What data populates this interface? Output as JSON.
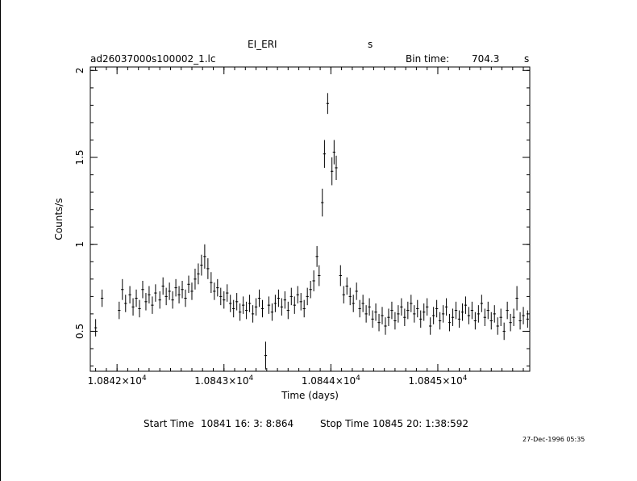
{
  "header": {
    "object_name": "EI_ERI",
    "object_unit": "s",
    "file_name": "ad26037000s100002_1.lc",
    "bin_time_label": "Bin time:",
    "bin_time_value": "704.3",
    "bin_time_unit": "s"
  },
  "footer": {
    "start_label": "Start Time",
    "start_value": "10841 16: 3: 8:864",
    "stop_label": "Stop Time",
    "stop_value": "10845 20: 1:38:592",
    "timestamp": "27-Dec-1996 05:35"
  },
  "colors": {
    "axes": "#000000",
    "data": "#000000",
    "background": "#ffffff"
  },
  "chart_data": {
    "type": "scatter",
    "xlabel": "Time (days)",
    "ylabel": "Counts/s",
    "xlim": [
      10841.75,
      10845.86
    ],
    "ylim": [
      0.27,
      2.02
    ],
    "x_ticks": [
      {
        "value": 10842,
        "mantissa": "1.0842",
        "exponent": "4"
      },
      {
        "value": 10843,
        "mantissa": "1.0843",
        "exponent": "4"
      },
      {
        "value": 10844,
        "mantissa": "1.0844",
        "exponent": "4"
      },
      {
        "value": 10845,
        "mantissa": "1.0845",
        "exponent": "4"
      }
    ],
    "y_ticks": [
      {
        "value": 0.5,
        "label": "0.5"
      },
      {
        "value": 1,
        "label": "1"
      },
      {
        "value": 1.5,
        "label": "1.5"
      },
      {
        "value": 2,
        "label": "2"
      }
    ],
    "x_minor_step": 0.1,
    "y_minor_step": 0.1,
    "error_bars": true,
    "points": [
      [
        10841.8,
        0.52,
        0.05
      ],
      [
        10841.86,
        0.69,
        0.05
      ],
      [
        10842.02,
        0.62,
        0.05
      ],
      [
        10842.05,
        0.74,
        0.06
      ],
      [
        10842.08,
        0.66,
        0.05
      ],
      [
        10842.12,
        0.71,
        0.05
      ],
      [
        10842.15,
        0.64,
        0.05
      ],
      [
        10842.18,
        0.69,
        0.05
      ],
      [
        10842.21,
        0.63,
        0.05
      ],
      [
        10842.24,
        0.74,
        0.05
      ],
      [
        10842.27,
        0.67,
        0.05
      ],
      [
        10842.3,
        0.71,
        0.05
      ],
      [
        10842.33,
        0.65,
        0.05
      ],
      [
        10842.36,
        0.72,
        0.05
      ],
      [
        10842.4,
        0.68,
        0.05
      ],
      [
        10842.43,
        0.76,
        0.05
      ],
      [
        10842.46,
        0.7,
        0.05
      ],
      [
        10842.49,
        0.73,
        0.05
      ],
      [
        10842.52,
        0.68,
        0.05
      ],
      [
        10842.55,
        0.75,
        0.05
      ],
      [
        10842.58,
        0.71,
        0.05
      ],
      [
        10842.61,
        0.74,
        0.05
      ],
      [
        10842.64,
        0.69,
        0.05
      ],
      [
        10842.67,
        0.77,
        0.05
      ],
      [
        10842.7,
        0.73,
        0.05
      ],
      [
        10842.73,
        0.8,
        0.06
      ],
      [
        10842.76,
        0.83,
        0.06
      ],
      [
        10842.79,
        0.88,
        0.06
      ],
      [
        10842.82,
        0.93,
        0.07
      ],
      [
        10842.85,
        0.86,
        0.06
      ],
      [
        10842.88,
        0.78,
        0.06
      ],
      [
        10842.91,
        0.73,
        0.05
      ],
      [
        10842.94,
        0.75,
        0.05
      ],
      [
        10842.97,
        0.7,
        0.05
      ],
      [
        10843.0,
        0.68,
        0.05
      ],
      [
        10843.03,
        0.72,
        0.05
      ],
      [
        10843.06,
        0.66,
        0.05
      ],
      [
        10843.09,
        0.63,
        0.05
      ],
      [
        10843.12,
        0.67,
        0.05
      ],
      [
        10843.15,
        0.61,
        0.05
      ],
      [
        10843.18,
        0.65,
        0.05
      ],
      [
        10843.21,
        0.62,
        0.05
      ],
      [
        10843.24,
        0.66,
        0.05
      ],
      [
        10843.27,
        0.6,
        0.05
      ],
      [
        10843.3,
        0.64,
        0.05
      ],
      [
        10843.33,
        0.69,
        0.05
      ],
      [
        10843.36,
        0.63,
        0.05
      ],
      [
        10843.39,
        0.36,
        0.08
      ],
      [
        10843.42,
        0.65,
        0.05
      ],
      [
        10843.45,
        0.61,
        0.05
      ],
      [
        10843.48,
        0.66,
        0.05
      ],
      [
        10843.51,
        0.69,
        0.05
      ],
      [
        10843.54,
        0.64,
        0.05
      ],
      [
        10843.57,
        0.68,
        0.05
      ],
      [
        10843.6,
        0.62,
        0.05
      ],
      [
        10843.63,
        0.7,
        0.05
      ],
      [
        10843.66,
        0.65,
        0.05
      ],
      [
        10843.69,
        0.71,
        0.05
      ],
      [
        10843.72,
        0.67,
        0.05
      ],
      [
        10843.75,
        0.63,
        0.05
      ],
      [
        10843.78,
        0.7,
        0.05
      ],
      [
        10843.81,
        0.74,
        0.05
      ],
      [
        10843.84,
        0.79,
        0.06
      ],
      [
        10843.87,
        0.93,
        0.06
      ],
      [
        10843.89,
        0.82,
        0.06
      ],
      [
        10843.92,
        1.24,
        0.08
      ],
      [
        10843.94,
        1.52,
        0.08
      ],
      [
        10843.97,
        1.81,
        0.06
      ],
      [
        10844.01,
        1.42,
        0.08
      ],
      [
        10844.03,
        1.53,
        0.07
      ],
      [
        10844.05,
        1.44,
        0.07
      ],
      [
        10844.09,
        0.82,
        0.06
      ],
      [
        10844.12,
        0.71,
        0.05
      ],
      [
        10844.15,
        0.76,
        0.05
      ],
      [
        10844.18,
        0.7,
        0.05
      ],
      [
        10844.21,
        0.66,
        0.05
      ],
      [
        10844.24,
        0.73,
        0.05
      ],
      [
        10844.27,
        0.63,
        0.05
      ],
      [
        10844.3,
        0.66,
        0.05
      ],
      [
        10844.33,
        0.6,
        0.05
      ],
      [
        10844.36,
        0.64,
        0.05
      ],
      [
        10844.39,
        0.57,
        0.05
      ],
      [
        10844.42,
        0.61,
        0.05
      ],
      [
        10844.45,
        0.55,
        0.05
      ],
      [
        10844.48,
        0.59,
        0.05
      ],
      [
        10844.51,
        0.53,
        0.05
      ],
      [
        10844.54,
        0.58,
        0.05
      ],
      [
        10844.57,
        0.62,
        0.05
      ],
      [
        10844.6,
        0.56,
        0.05
      ],
      [
        10844.63,
        0.6,
        0.05
      ],
      [
        10844.66,
        0.64,
        0.05
      ],
      [
        10844.69,
        0.58,
        0.05
      ],
      [
        10844.72,
        0.62,
        0.05
      ],
      [
        10844.75,
        0.66,
        0.05
      ],
      [
        10844.78,
        0.6,
        0.05
      ],
      [
        10844.81,
        0.63,
        0.05
      ],
      [
        10844.84,
        0.57,
        0.05
      ],
      [
        10844.87,
        0.61,
        0.05
      ],
      [
        10844.9,
        0.64,
        0.05
      ],
      [
        10844.93,
        0.53,
        0.05
      ],
      [
        10844.96,
        0.59,
        0.05
      ],
      [
        10844.99,
        0.63,
        0.05
      ],
      [
        10845.02,
        0.56,
        0.05
      ],
      [
        10845.05,
        0.6,
        0.05
      ],
      [
        10845.08,
        0.64,
        0.05
      ],
      [
        10845.11,
        0.55,
        0.05
      ],
      [
        10845.14,
        0.58,
        0.05
      ],
      [
        10845.17,
        0.62,
        0.05
      ],
      [
        10845.2,
        0.57,
        0.05
      ],
      [
        10845.23,
        0.61,
        0.05
      ],
      [
        10845.26,
        0.65,
        0.05
      ],
      [
        10845.29,
        0.59,
        0.05
      ],
      [
        10845.32,
        0.62,
        0.05
      ],
      [
        10845.35,
        0.56,
        0.05
      ],
      [
        10845.38,
        0.6,
        0.05
      ],
      [
        10845.41,
        0.66,
        0.05
      ],
      [
        10845.44,
        0.58,
        0.05
      ],
      [
        10845.47,
        0.62,
        0.05
      ],
      [
        10845.5,
        0.56,
        0.05
      ],
      [
        10845.53,
        0.6,
        0.05
      ],
      [
        10845.56,
        0.53,
        0.05
      ],
      [
        10845.59,
        0.58,
        0.05
      ],
      [
        10845.62,
        0.5,
        0.05
      ],
      [
        10845.65,
        0.62,
        0.05
      ],
      [
        10845.68,
        0.55,
        0.05
      ],
      [
        10845.71,
        0.58,
        0.05
      ],
      [
        10845.74,
        0.69,
        0.07
      ],
      [
        10845.77,
        0.56,
        0.05
      ],
      [
        10845.8,
        0.59,
        0.05
      ],
      [
        10845.84,
        0.57,
        0.05
      ]
    ]
  }
}
